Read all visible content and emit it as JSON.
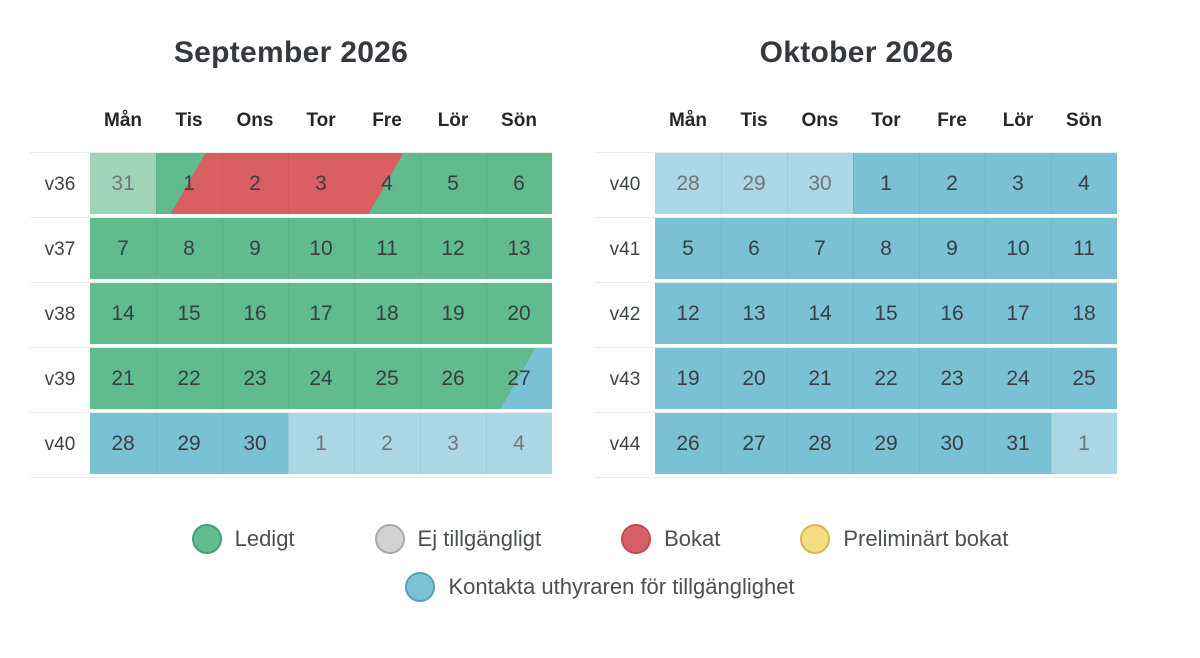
{
  "page": {
    "background": "#ffffff"
  },
  "weekday_headers": [
    "Mån",
    "Tis",
    "Ons",
    "Tor",
    "Fre",
    "Lör",
    "Sön"
  ],
  "cell_colors": {
    "available": "#60bc8d",
    "available_muted": "#a0d4b8",
    "booked": "#d95f63",
    "contact": "#7bc1d6",
    "contact_muted": "#abd7e4"
  },
  "text_colors": {
    "title": "#35383c",
    "weekday_header": "#24272a",
    "week_label": "#3e4347",
    "day": "#3a3e42",
    "day_muted": "#70767b",
    "legend": "#4a4f54"
  },
  "calendars": [
    {
      "title": "September 2026",
      "weeks": [
        {
          "label": "v36",
          "days": [
            {
              "num": "31",
              "base": "available_muted",
              "muted": true
            },
            {
              "num": "1",
              "base": "available",
              "overlay": "booked",
              "overlay_side": "right"
            },
            {
              "num": "2",
              "base": "booked"
            },
            {
              "num": "3",
              "base": "booked"
            },
            {
              "num": "4",
              "base": "available",
              "overlay": "booked",
              "overlay_side": "left"
            },
            {
              "num": "5",
              "base": "available"
            },
            {
              "num": "6",
              "base": "available"
            }
          ]
        },
        {
          "label": "v37",
          "days": [
            {
              "num": "7",
              "base": "available"
            },
            {
              "num": "8",
              "base": "available"
            },
            {
              "num": "9",
              "base": "available"
            },
            {
              "num": "10",
              "base": "available"
            },
            {
              "num": "11",
              "base": "available"
            },
            {
              "num": "12",
              "base": "available"
            },
            {
              "num": "13",
              "base": "available"
            }
          ]
        },
        {
          "label": "v38",
          "days": [
            {
              "num": "14",
              "base": "available"
            },
            {
              "num": "15",
              "base": "available"
            },
            {
              "num": "16",
              "base": "available"
            },
            {
              "num": "17",
              "base": "available"
            },
            {
              "num": "18",
              "base": "available"
            },
            {
              "num": "19",
              "base": "available"
            },
            {
              "num": "20",
              "base": "available"
            }
          ]
        },
        {
          "label": "v39",
          "days": [
            {
              "num": "21",
              "base": "available"
            },
            {
              "num": "22",
              "base": "available"
            },
            {
              "num": "23",
              "base": "available"
            },
            {
              "num": "24",
              "base": "available"
            },
            {
              "num": "25",
              "base": "available"
            },
            {
              "num": "26",
              "base": "available"
            },
            {
              "num": "27",
              "base": "available",
              "overlay": "contact",
              "overlay_side": "right"
            }
          ]
        },
        {
          "label": "v40",
          "days": [
            {
              "num": "28",
              "base": "contact"
            },
            {
              "num": "29",
              "base": "contact"
            },
            {
              "num": "30",
              "base": "contact"
            },
            {
              "num": "1",
              "base": "contact_muted",
              "muted": true
            },
            {
              "num": "2",
              "base": "contact_muted",
              "muted": true
            },
            {
              "num": "3",
              "base": "contact_muted",
              "muted": true
            },
            {
              "num": "4",
              "base": "contact_muted",
              "muted": true
            }
          ]
        }
      ]
    },
    {
      "title": "Oktober 2026",
      "weeks": [
        {
          "label": "v40",
          "days": [
            {
              "num": "28",
              "base": "contact_muted",
              "muted": true
            },
            {
              "num": "29",
              "base": "contact_muted",
              "muted": true
            },
            {
              "num": "30",
              "base": "contact_muted",
              "muted": true
            },
            {
              "num": "1",
              "base": "contact"
            },
            {
              "num": "2",
              "base": "contact"
            },
            {
              "num": "3",
              "base": "contact"
            },
            {
              "num": "4",
              "base": "contact"
            }
          ]
        },
        {
          "label": "v41",
          "days": [
            {
              "num": "5",
              "base": "contact"
            },
            {
              "num": "6",
              "base": "contact"
            },
            {
              "num": "7",
              "base": "contact"
            },
            {
              "num": "8",
              "base": "contact"
            },
            {
              "num": "9",
              "base": "contact"
            },
            {
              "num": "10",
              "base": "contact"
            },
            {
              "num": "11",
              "base": "contact"
            }
          ]
        },
        {
          "label": "v42",
          "days": [
            {
              "num": "12",
              "base": "contact"
            },
            {
              "num": "13",
              "base": "contact"
            },
            {
              "num": "14",
              "base": "contact"
            },
            {
              "num": "15",
              "base": "contact"
            },
            {
              "num": "16",
              "base": "contact"
            },
            {
              "num": "17",
              "base": "contact"
            },
            {
              "num": "18",
              "base": "contact"
            }
          ]
        },
        {
          "label": "v43",
          "days": [
            {
              "num": "19",
              "base": "contact"
            },
            {
              "num": "20",
              "base": "contact"
            },
            {
              "num": "21",
              "base": "contact"
            },
            {
              "num": "22",
              "base": "contact"
            },
            {
              "num": "23",
              "base": "contact"
            },
            {
              "num": "24",
              "base": "contact"
            },
            {
              "num": "25",
              "base": "contact"
            }
          ]
        },
        {
          "label": "v44",
          "days": [
            {
              "num": "26",
              "base": "contact"
            },
            {
              "num": "27",
              "base": "contact"
            },
            {
              "num": "28",
              "base": "contact"
            },
            {
              "num": "29",
              "base": "contact"
            },
            {
              "num": "30",
              "base": "contact"
            },
            {
              "num": "31",
              "base": "contact"
            },
            {
              "num": "1",
              "base": "contact_muted",
              "muted": true
            }
          ]
        }
      ]
    }
  ],
  "legend": {
    "rows": [
      [
        {
          "key": "available",
          "label": "Ledigt"
        },
        {
          "key": "not_available",
          "label": "Ej tillgängligt"
        },
        {
          "key": "booked",
          "label": "Bokat"
        },
        {
          "key": "preliminary",
          "label": "Preliminärt bokat"
        }
      ],
      [
        {
          "key": "contact",
          "label": "Kontakta uthyraren för tillgänglighet"
        }
      ]
    ],
    "colors": {
      "available": {
        "fill": "#62bd8e",
        "border": "#43a074"
      },
      "not_available": {
        "fill": "#d2d2d2",
        "border": "#a8a8a8"
      },
      "booked": {
        "fill": "#d85f64",
        "border": "#c04b52"
      },
      "preliminary": {
        "fill": "#f4dc80",
        "border": "#d9b94e"
      },
      "contact": {
        "fill": "#7cc2d6",
        "border": "#579fb8"
      }
    }
  }
}
